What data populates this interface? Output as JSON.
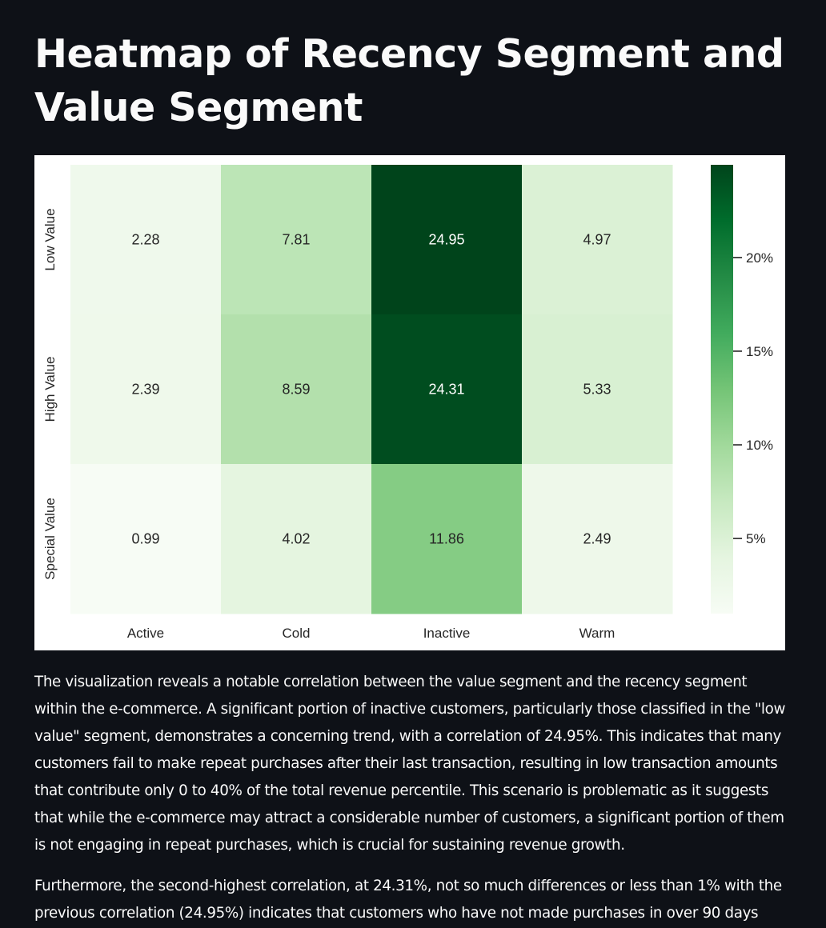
{
  "page": {
    "title": "Heatmap of Recency Segment and Value Segment"
  },
  "chart_data": {
    "type": "heatmap",
    "title": "",
    "xlabel": "",
    "ylabel": "",
    "x": [
      "Active",
      "Cold",
      "Inactive",
      "Warm"
    ],
    "y": [
      "Low Value",
      "High Value",
      "Special Value"
    ],
    "values": [
      [
        2.28,
        7.81,
        24.95,
        4.97
      ],
      [
        2.39,
        8.59,
        24.31,
        5.33
      ],
      [
        0.99,
        4.02,
        11.86,
        2.49
      ]
    ],
    "annotations_format": "0.00",
    "colormap": "Greens",
    "colorbar": {
      "ticks": [
        5,
        10,
        15,
        20
      ],
      "tick_labels": [
        "5%",
        "10%",
        "15%",
        "20%"
      ],
      "range": [
        0.99,
        24.95
      ]
    },
    "colors": {
      "text_dark": "#262626",
      "text_light": "#ffffff"
    }
  },
  "paragraphs": [
    "The visualization reveals a notable correlation between the value segment and the recency segment within the e-commerce. A significant portion of inactive customers, particularly those classified in the \"low value\" segment, demonstrates a concerning trend, with a correlation of 24.95%. This indicates that many customers fail to make repeat purchases after their last transaction, resulting in low transaction amounts that contribute only 0 to 40% of the total revenue percentile. This scenario is problematic as it suggests that while the e-commerce may attract a considerable number of customers, a significant portion of them is not engaging in repeat purchases, which is crucial for sustaining revenue growth.",
    "Furthermore, the second-highest correlation, at 24.31%, not so much differences or less than 1% with the previous correlation (24.95%) indicates that customers who have not made purchases in over 90 days"
  ]
}
